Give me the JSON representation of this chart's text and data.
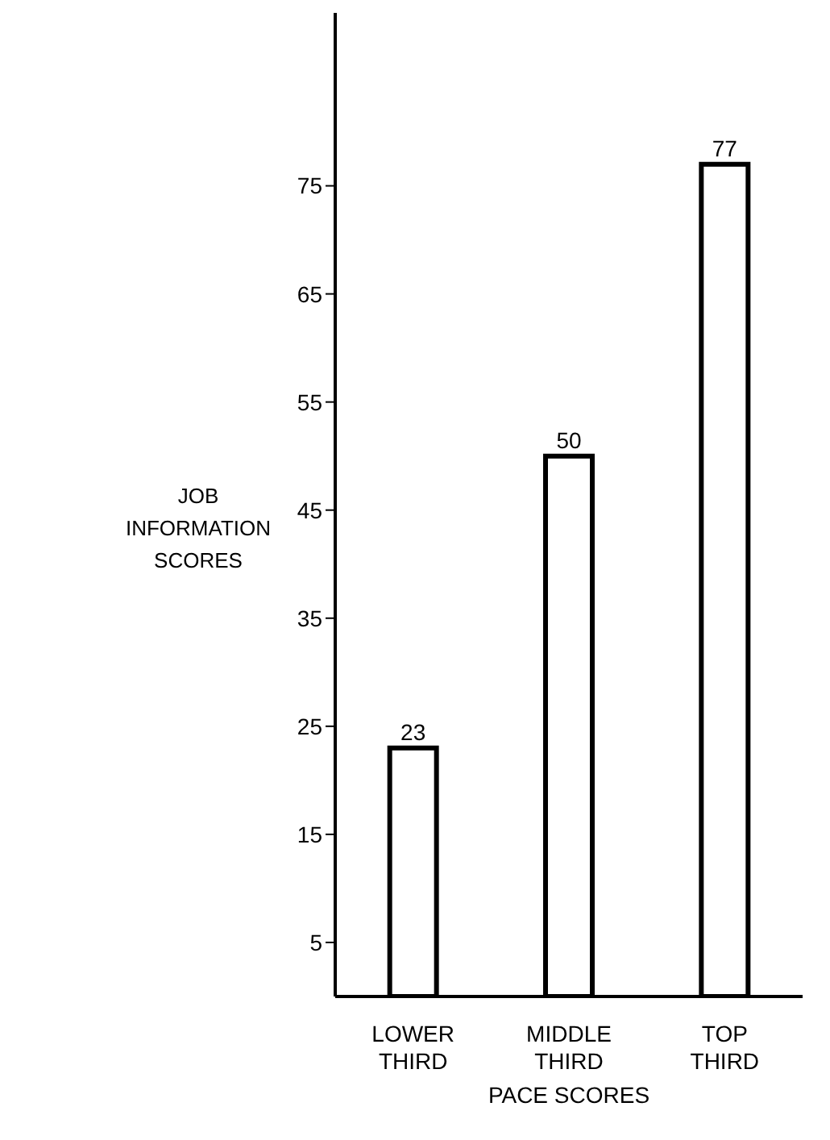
{
  "chart_data": {
    "type": "bar",
    "xlabel": "PACE SCORES",
    "ylabel": "JOB INFORMATION SCORES",
    "categories": [
      "LOWER THIRD",
      "MIDDLE THIRD",
      "TOP THIRD"
    ],
    "values": [
      23,
      50,
      77
    ],
    "color": "#000000",
    "ylim": [
      0,
      91
    ],
    "yticks": [
      5,
      15,
      25,
      35,
      45,
      55,
      65,
      75
    ],
    "data_labels": true,
    "grid": false
  }
}
